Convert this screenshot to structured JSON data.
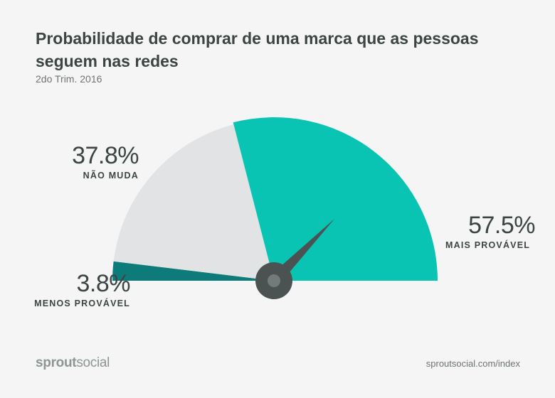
{
  "header": {
    "title": "Probabilidade de comprar de uma marca que as pessoas seguem nas redes",
    "subtitle": "2do Trim. 2016"
  },
  "chart_data": {
    "type": "gauge",
    "unit": "%",
    "segments": [
      {
        "label": "MENOS PROVÁVEL",
        "value": 3.8,
        "display": "3.8%",
        "color": "#0e7b7b"
      },
      {
        "label": "NÃO MUDA",
        "value": 37.8,
        "display": "37.8%",
        "color": "#e1e3e4"
      },
      {
        "label": "MAIS PROVÁVEL",
        "value": 57.5,
        "display": "57.5%",
        "color": "#09c4b3"
      }
    ],
    "needle_color": "#4a5352"
  },
  "footer": {
    "logo_bold": "sprout",
    "logo_light": "social",
    "source": "sproutsocial.com/index"
  }
}
